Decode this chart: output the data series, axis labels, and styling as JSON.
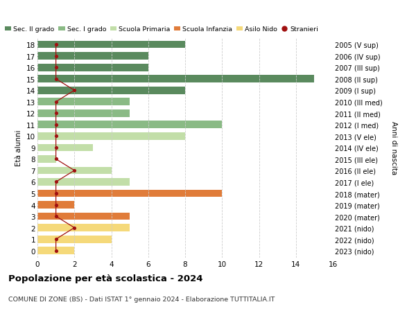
{
  "ages": [
    18,
    17,
    16,
    15,
    14,
    13,
    12,
    11,
    10,
    9,
    8,
    7,
    6,
    5,
    4,
    3,
    2,
    1,
    0
  ],
  "right_labels": [
    "2005 (V sup)",
    "2006 (IV sup)",
    "2007 (III sup)",
    "2008 (II sup)",
    "2009 (I sup)",
    "2010 (III med)",
    "2011 (II med)",
    "2012 (I med)",
    "2013 (V ele)",
    "2014 (IV ele)",
    "2015 (III ele)",
    "2016 (II ele)",
    "2017 (I ele)",
    "2018 (mater)",
    "2019 (mater)",
    "2020 (mater)",
    "2021 (nido)",
    "2022 (nido)",
    "2023 (nido)"
  ],
  "bar_values": [
    8,
    6,
    6,
    15,
    8,
    5,
    5,
    10,
    8,
    3,
    1,
    4,
    5,
    10,
    2,
    5,
    5,
    4,
    2
  ],
  "bar_colors": [
    "#5a8a5e",
    "#5a8a5e",
    "#5a8a5e",
    "#5a8a5e",
    "#5a8a5e",
    "#8aba85",
    "#8aba85",
    "#8aba85",
    "#c2dea8",
    "#c2dea8",
    "#c2dea8",
    "#c2dea8",
    "#c2dea8",
    "#e07c3a",
    "#e07c3a",
    "#e07c3a",
    "#f5d97a",
    "#f5d97a",
    "#f5d97a"
  ],
  "stranieri_x": [
    1,
    1,
    1,
    1,
    2,
    1,
    1,
    1,
    1,
    1,
    1,
    2,
    1,
    1,
    1,
    1,
    2,
    1,
    1
  ],
  "stranieri_ages": [
    18,
    17,
    16,
    15,
    14,
    13,
    12,
    11,
    10,
    9,
    8,
    7,
    6,
    5,
    4,
    3,
    2,
    1,
    0
  ],
  "legend_labels": [
    "Sec. II grado",
    "Sec. I grado",
    "Scuola Primaria",
    "Scuola Infanzia",
    "Asilo Nido",
    "Stranieri"
  ],
  "legend_colors": [
    "#5a8a5e",
    "#8aba85",
    "#c2dea8",
    "#e07c3a",
    "#f5d97a",
    "#a01010"
  ],
  "ylabel": "Età alunni",
  "right_ylabel": "Anni di nascita",
  "title": "Popolazione per età scolastica - 2024",
  "subtitle": "COMUNE DI ZONE (BS) - Dati ISTAT 1° gennaio 2024 - Elaborazione TUTTITALIA.IT",
  "xlim": [
    0,
    16
  ],
  "xticks": [
    0,
    2,
    4,
    6,
    8,
    10,
    12,
    14,
    16
  ],
  "bar_height": 0.65,
  "grid_color": "#cccccc"
}
